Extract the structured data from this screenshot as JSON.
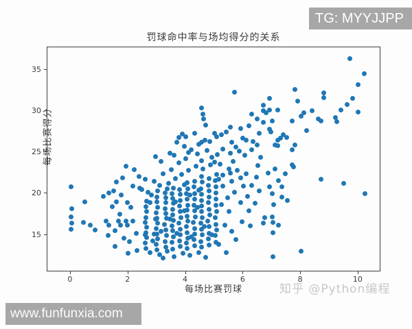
{
  "page": {
    "top_badge_text": "TG: MYYJJPP",
    "bottom_badge_text": "www.funfunxia.com",
    "watermark_text": "知乎 @Python编程"
  },
  "colors": {
    "accent": "#2077b4",
    "badge_bg": "#a7a7a7",
    "spine": "#3d3d3d",
    "watermark": "#c7c7c7"
  },
  "chart_data": {
    "type": "scatter",
    "title": "罚球命中率与场均得分的关系",
    "xlabel": "每场比赛罚球",
    "ylabel": "每场比赛得分",
    "x_ticks": [
      0,
      2,
      4,
      6,
      8,
      10
    ],
    "y_ticks": [
      15,
      20,
      25,
      30,
      35
    ],
    "xlim": [
      -0.81,
      10.79
    ],
    "ylim": [
      10.5,
      37.7
    ],
    "grid": false,
    "legend": null,
    "marker_color": "#2077b4",
    "points": [
      [
        0.02,
        20.8
      ],
      [
        0.03,
        18.2
      ],
      [
        0.02,
        17.2
      ],
      [
        0.04,
        16.4
      ],
      [
        0.02,
        15.7
      ],
      [
        0.5,
        19.0
      ],
      [
        0.45,
        16.5
      ],
      [
        0.67,
        16.2
      ],
      [
        0.86,
        15.6
      ],
      [
        1.14,
        19.7
      ],
      [
        1.33,
        20.1
      ],
      [
        1.5,
        20.3
      ],
      [
        1.58,
        19.0
      ],
      [
        1.81,
        21.9
      ],
      [
        1.93,
        23.3
      ],
      [
        2.22,
        22.9
      ],
      [
        2.37,
        22.1
      ],
      [
        2.6,
        21.7
      ],
      [
        2.41,
        20.7
      ],
      [
        2.48,
        20.5
      ],
      [
        2.69,
        20.2
      ],
      [
        1.98,
        18.9
      ],
      [
        2.1,
        18.3
      ],
      [
        1.22,
        16.7
      ],
      [
        1.33,
        16.2
      ],
      [
        1.65,
        16.7
      ],
      [
        1.74,
        16.2
      ],
      [
        1.93,
        16.7
      ],
      [
        1.98,
        16.2
      ],
      [
        2.17,
        16.7
      ],
      [
        2.29,
        15.2
      ],
      [
        2.58,
        15.0
      ],
      [
        2.89,
        15.1
      ],
      [
        1.45,
        18.4
      ],
      [
        1.7,
        17.5
      ],
      [
        1.55,
        15.5
      ],
      [
        1.3,
        14.9
      ],
      [
        1.85,
        14.6
      ],
      [
        2.05,
        14.2
      ],
      [
        1.75,
        19.8
      ],
      [
        2.15,
        20.9
      ],
      [
        1.6,
        21.4
      ],
      [
        1.55,
        13.6
      ],
      [
        2.3,
        13.1
      ],
      [
        2.0,
        12.8
      ],
      [
        2.62,
        13.4
      ],
      [
        2.6,
        14.0
      ],
      [
        2.64,
        14.7
      ],
      [
        2.61,
        15.3
      ],
      [
        2.63,
        15.9
      ],
      [
        2.6,
        16.5
      ],
      [
        2.62,
        17.1
      ],
      [
        2.64,
        17.8
      ],
      [
        2.61,
        18.4
      ],
      [
        2.63,
        19.1
      ],
      [
        3.0,
        13.2
      ],
      [
        2.98,
        13.9
      ],
      [
        3.02,
        14.5
      ],
      [
        3.0,
        15.1
      ],
      [
        2.97,
        15.8
      ],
      [
        3.03,
        16.4
      ],
      [
        3.0,
        17.0
      ],
      [
        2.98,
        17.7
      ],
      [
        3.02,
        18.3
      ],
      [
        3.0,
        19.0
      ],
      [
        2.99,
        19.6
      ],
      [
        3.01,
        20.3
      ],
      [
        3.3,
        13.5
      ],
      [
        3.28,
        14.2
      ],
      [
        3.32,
        14.9
      ],
      [
        3.3,
        15.6
      ],
      [
        3.27,
        16.3
      ],
      [
        3.33,
        17.0
      ],
      [
        3.3,
        17.6
      ],
      [
        3.29,
        18.2
      ],
      [
        3.31,
        18.9
      ],
      [
        3.3,
        19.5
      ],
      [
        3.28,
        20.1
      ],
      [
        3.55,
        13.3
      ],
      [
        3.53,
        14.1
      ],
      [
        3.57,
        14.8
      ],
      [
        3.55,
        15.5
      ],
      [
        3.52,
        16.1
      ],
      [
        3.58,
        16.8
      ],
      [
        3.55,
        17.4
      ],
      [
        3.54,
        18.1
      ],
      [
        3.56,
        18.8
      ],
      [
        3.55,
        19.4
      ],
      [
        3.53,
        20.0
      ],
      [
        3.57,
        20.7
      ],
      [
        3.8,
        13.6
      ],
      [
        3.78,
        14.3
      ],
      [
        3.82,
        15.0
      ],
      [
        3.8,
        15.7
      ],
      [
        3.77,
        16.4
      ],
      [
        3.83,
        17.1
      ],
      [
        3.8,
        17.8
      ],
      [
        3.79,
        18.5
      ],
      [
        3.81,
        19.2
      ],
      [
        3.8,
        19.9
      ],
      [
        3.78,
        20.5
      ],
      [
        4.05,
        13.4
      ],
      [
        4.03,
        14.0
      ],
      [
        4.07,
        14.6
      ],
      [
        4.05,
        15.3
      ],
      [
        4.02,
        16.0
      ],
      [
        4.08,
        16.7
      ],
      [
        4.05,
        17.3
      ],
      [
        4.04,
        18.0
      ],
      [
        4.06,
        18.6
      ],
      [
        4.05,
        19.3
      ],
      [
        4.03,
        20.0
      ],
      [
        4.07,
        20.6
      ],
      [
        4.05,
        21.3
      ],
      [
        4.3,
        13.7
      ],
      [
        4.28,
        14.4
      ],
      [
        4.32,
        15.1
      ],
      [
        4.3,
        15.8
      ],
      [
        4.27,
        16.5
      ],
      [
        4.33,
        17.2
      ],
      [
        4.3,
        17.9
      ],
      [
        4.29,
        18.6
      ],
      [
        4.31,
        19.3
      ],
      [
        4.3,
        20.0
      ],
      [
        4.28,
        20.8
      ],
      [
        4.32,
        21.5
      ],
      [
        4.55,
        13.5
      ],
      [
        4.53,
        14.2
      ],
      [
        4.57,
        15.0
      ],
      [
        4.55,
        15.7
      ],
      [
        4.52,
        16.4
      ],
      [
        4.58,
        17.1
      ],
      [
        4.55,
        17.8
      ],
      [
        4.54,
        18.5
      ],
      [
        4.56,
        19.2
      ],
      [
        4.55,
        19.9
      ],
      [
        4.53,
        20.6
      ],
      [
        4.57,
        21.4
      ],
      [
        4.55,
        22.1
      ],
      [
        4.8,
        13.8
      ],
      [
        4.78,
        14.5
      ],
      [
        4.82,
        15.2
      ],
      [
        4.8,
        16.0
      ],
      [
        4.77,
        16.7
      ],
      [
        4.83,
        17.4
      ],
      [
        4.8,
        18.1
      ],
      [
        4.79,
        18.9
      ],
      [
        4.81,
        19.6
      ],
      [
        4.8,
        20.3
      ],
      [
        4.78,
        21.0
      ],
      [
        4.82,
        21.8
      ],
      [
        5.05,
        14.1
      ],
      [
        5.03,
        14.9
      ],
      [
        5.07,
        15.6
      ],
      [
        5.05,
        16.3
      ],
      [
        5.02,
        17.1
      ],
      [
        5.08,
        17.8
      ],
      [
        5.05,
        18.6
      ],
      [
        5.04,
        19.3
      ],
      [
        5.06,
        20.1
      ],
      [
        5.05,
        20.8
      ],
      [
        5.03,
        21.6
      ],
      [
        5.07,
        22.3
      ],
      [
        2.75,
        12.9
      ],
      [
        3.1,
        12.6
      ],
      [
        3.35,
        13.0
      ],
      [
        3.6,
        12.4
      ],
      [
        3.9,
        12.8
      ],
      [
        4.15,
        12.5
      ],
      [
        4.45,
        12.9
      ],
      [
        4.7,
        12.3
      ],
      [
        3.2,
        12.2
      ],
      [
        2.85,
        14.3
      ],
      [
        3.15,
        15.4
      ],
      [
        3.45,
        16.9
      ],
      [
        3.7,
        15.2
      ],
      [
        3.95,
        17.9
      ],
      [
        4.2,
        14.8
      ],
      [
        4.4,
        18.3
      ],
      [
        4.65,
        16.0
      ],
      [
        4.9,
        15.0
      ],
      [
        3.4,
        21.2
      ],
      [
        3.65,
        21.8
      ],
      [
        3.1,
        21.0
      ],
      [
        2.8,
        19.8
      ],
      [
        2.9,
        21.5
      ],
      [
        3.2,
        22.4
      ],
      [
        3.5,
        22.9
      ],
      [
        3.85,
        22.3
      ],
      [
        4.1,
        22.8
      ],
      [
        4.35,
        23.3
      ],
      [
        4.6,
        23.0
      ],
      [
        4.85,
        23.5
      ],
      [
        5.0,
        23.8
      ],
      [
        2.75,
        18.9
      ],
      [
        2.95,
        16.9
      ],
      [
        3.65,
        19.0
      ],
      [
        4.15,
        19.8
      ],
      [
        4.45,
        20.4
      ],
      [
        3.95,
        21.1
      ],
      [
        3.35,
        20.6
      ],
      [
        5.2,
        23.6
      ],
      [
        5.5,
        23.0
      ],
      [
        5.3,
        22.2
      ],
      [
        5.6,
        21.5
      ],
      [
        5.8,
        22.8
      ],
      [
        5.9,
        21.9
      ],
      [
        6.1,
        22.4
      ],
      [
        6.0,
        20.9
      ],
      [
        5.7,
        20.2
      ],
      [
        5.45,
        19.5
      ],
      [
        5.25,
        18.7
      ],
      [
        5.5,
        17.8
      ],
      [
        5.9,
        18.9
      ],
      [
        6.15,
        19.7
      ],
      [
        6.3,
        21.0
      ],
      [
        6.45,
        22.0
      ],
      [
        6.5,
        23.4
      ],
      [
        5.35,
        16.2
      ],
      [
        5.6,
        15.4
      ],
      [
        5.15,
        13.9
      ],
      [
        5.4,
        12.9
      ],
      [
        6.2,
        17.9
      ],
      [
        5.95,
        16.6
      ],
      [
        6.4,
        18.8
      ],
      [
        5.75,
        14.4
      ],
      [
        6.55,
        20.3
      ],
      [
        5.3,
        20.9
      ],
      [
        5.55,
        22.5
      ],
      [
        5.15,
        21.7
      ],
      [
        6.25,
        16.1
      ],
      [
        3.45,
        24.9
      ],
      [
        3.6,
        24.6
      ],
      [
        4.1,
        25.0
      ],
      [
        4.4,
        24.8
      ],
      [
        4.75,
        25.2
      ],
      [
        5.1,
        24.7
      ],
      [
        5.3,
        25.4
      ],
      [
        5.55,
        24.9
      ],
      [
        5.85,
        25.1
      ],
      [
        6.05,
        24.6
      ],
      [
        6.3,
        25.3
      ],
      [
        2.95,
        24.5
      ],
      [
        3.15,
        23.9
      ],
      [
        3.75,
        23.7
      ],
      [
        4.0,
        24.2
      ],
      [
        4.55,
        24.0
      ],
      [
        4.9,
        24.4
      ],
      [
        5.65,
        23.9
      ],
      [
        6.6,
        24.4
      ],
      [
        5.7,
        32.3
      ],
      [
        4.56,
        30.4
      ],
      [
        4.6,
        29.6
      ],
      [
        4.63,
        29.0
      ],
      [
        6.28,
        29.6
      ],
      [
        6.47,
        29.0
      ],
      [
        4.7,
        28.3
      ],
      [
        6.2,
        28.2
      ],
      [
        5.56,
        28.0
      ],
      [
        5.92,
        27.9
      ],
      [
        6.56,
        27.3
      ],
      [
        3.89,
        27.2
      ],
      [
        3.75,
        26.8
      ],
      [
        4.01,
        26.9
      ],
      [
        4.3,
        27.3
      ],
      [
        5.0,
        27.3
      ],
      [
        5.08,
        26.9
      ],
      [
        5.25,
        27.1
      ],
      [
        5.4,
        27.5
      ],
      [
        4.67,
        26.5
      ],
      [
        4.84,
        26.3
      ],
      [
        4.56,
        26.2
      ],
      [
        5.99,
        26.7
      ],
      [
        6.11,
        26.5
      ],
      [
        6.35,
        26.3
      ],
      [
        6.49,
        25.9
      ],
      [
        3.69,
        26.2
      ],
      [
        3.96,
        25.7
      ],
      [
        4.2,
        25.3
      ],
      [
        4.45,
        26.0
      ],
      [
        5.6,
        26.2
      ],
      [
        5.75,
        25.6
      ],
      [
        9.7,
        36.3
      ],
      [
        10.2,
        34.5
      ],
      [
        10.0,
        33.2
      ],
      [
        7.8,
        32.6
      ],
      [
        8.8,
        32.2
      ],
      [
        8.8,
        31.6
      ],
      [
        6.9,
        31.5
      ],
      [
        7.9,
        31.2
      ],
      [
        9.8,
        31.5
      ],
      [
        9.6,
        30.8
      ],
      [
        6.7,
        30.7
      ],
      [
        6.7,
        30.0
      ],
      [
        6.9,
        30.1
      ],
      [
        7.2,
        30.1
      ],
      [
        6.8,
        29.8
      ],
      [
        10.0,
        29.9
      ],
      [
        9.4,
        30.1
      ],
      [
        8.1,
        29.8
      ],
      [
        8.4,
        30.0
      ],
      [
        6.7,
        28.6
      ],
      [
        7.0,
        28.8
      ],
      [
        7.7,
        28.8
      ],
      [
        8.0,
        29.4
      ],
      [
        8.6,
        29.0
      ],
      [
        8.7,
        28.8
      ],
      [
        9.2,
        29.2
      ],
      [
        9.25,
        28.7
      ],
      [
        6.9,
        27.8
      ],
      [
        6.95,
        27.5
      ],
      [
        8.2,
        27.6
      ],
      [
        7.4,
        27.1
      ],
      [
        7.5,
        26.8
      ],
      [
        7.2,
        26.5
      ],
      [
        7.3,
        26.7
      ],
      [
        7.1,
        25.9
      ],
      [
        7.2,
        25.8
      ],
      [
        7.8,
        25.9
      ],
      [
        7.7,
        25.3
      ],
      [
        7.7,
        23.5
      ],
      [
        7.75,
        23.2
      ],
      [
        7.11,
        23.0
      ],
      [
        6.87,
        22.5
      ],
      [
        7.45,
        22.4
      ],
      [
        7.23,
        21.6
      ],
      [
        6.92,
        20.8
      ],
      [
        7.33,
        20.8
      ],
      [
        8.71,
        21.7
      ],
      [
        9.5,
        21.2
      ],
      [
        10.24,
        20.0
      ],
      [
        7.0,
        20.0
      ],
      [
        7.33,
        19.6
      ],
      [
        7.54,
        19.2
      ],
      [
        7.06,
        18.7
      ],
      [
        6.75,
        17.1
      ],
      [
        7.0,
        17.2
      ],
      [
        7.02,
        16.5
      ],
      [
        7.23,
        16.2
      ],
      [
        6.7,
        16.4
      ],
      [
        7.04,
        15.3
      ],
      [
        7.02,
        12.4
      ],
      [
        8.0,
        13.0
      ]
    ]
  }
}
